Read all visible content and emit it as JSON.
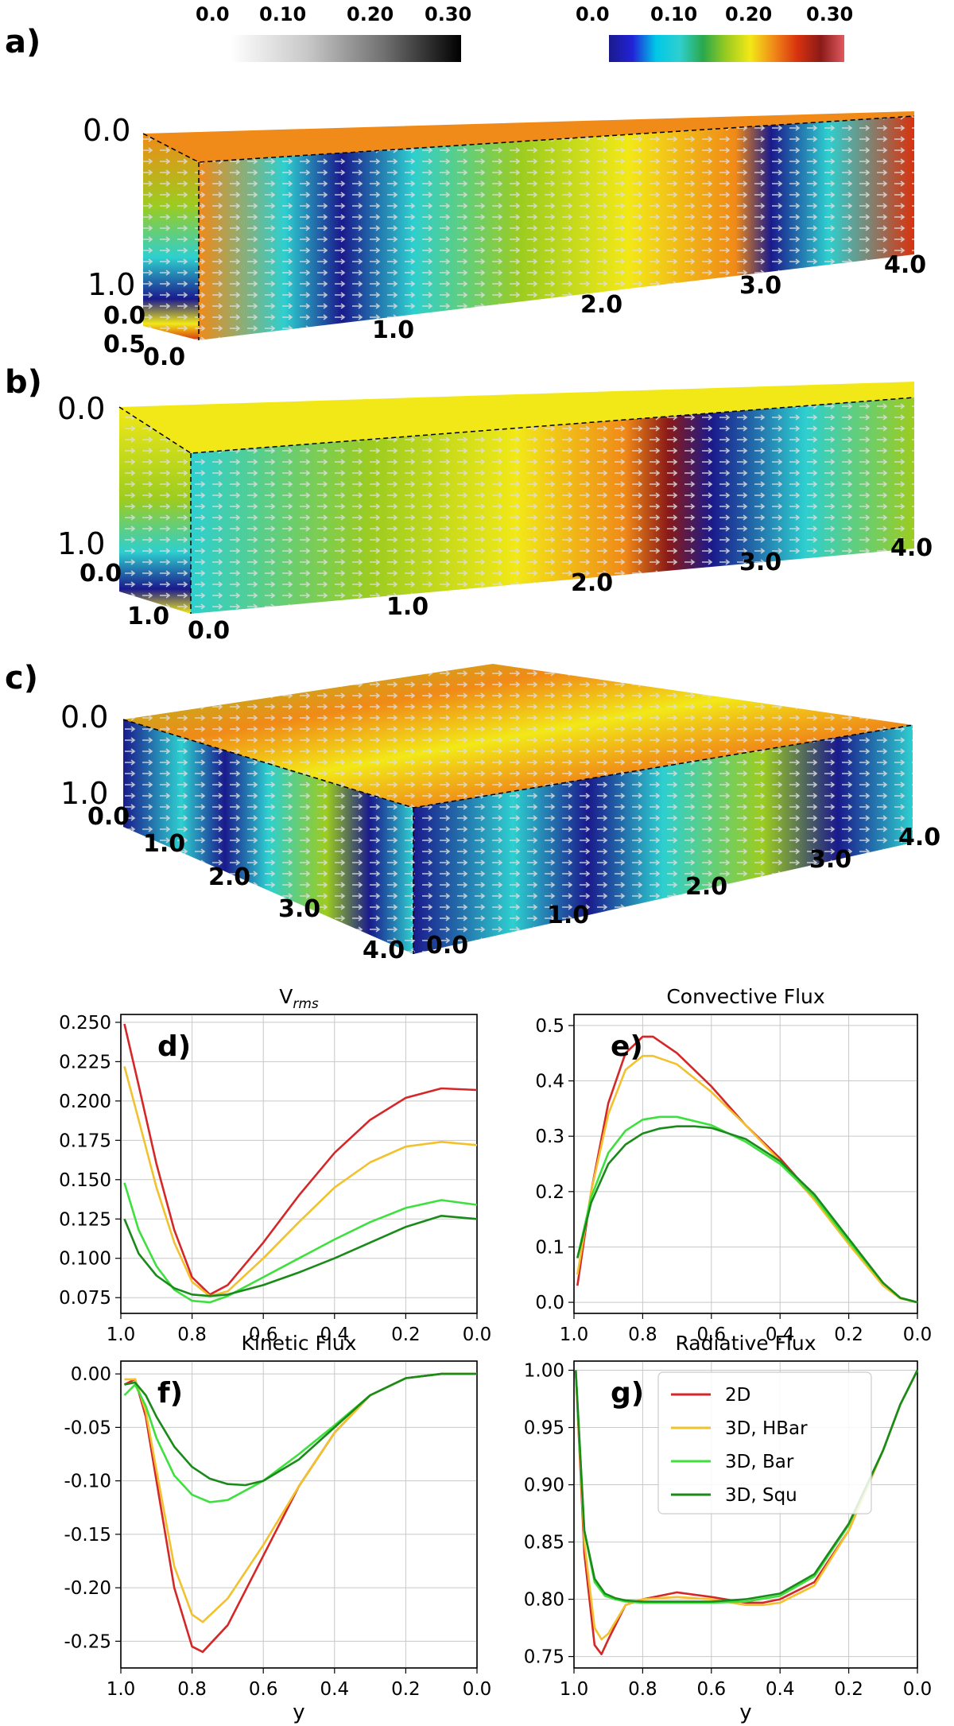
{
  "panels": {
    "a": "a)",
    "b": "b)",
    "c": "c)"
  },
  "colorbars": {
    "gray": {
      "ticks": [
        "0.0",
        "0.10",
        "0.20",
        "0.30"
      ]
    },
    "color": {
      "ticks": [
        "0.0",
        "0.10",
        "0.20",
        "0.30"
      ]
    }
  },
  "box_a": {
    "labels": [
      "0.0",
      "1.0",
      "0.0",
      "0.5",
      "0.0",
      "1.0",
      "2.0",
      "3.0",
      "4.0"
    ]
  },
  "box_b": {
    "labels": [
      "0.0",
      "1.0",
      "0.0",
      "1.0",
      "0.0",
      "1.0",
      "2.0",
      "3.0",
      "4.0"
    ]
  },
  "box_c": {
    "labels": [
      "0.0",
      "1.0",
      "0.0",
      "1.0",
      "2.0",
      "3.0",
      "4.0",
      "0.0",
      "1.0",
      "2.0",
      "3.0",
      "4.0"
    ]
  },
  "chart_data": [
    {
      "id": "d",
      "type": "line",
      "panel_label": "d)",
      "title": "V",
      "title_sub": "rms",
      "xlabel": "",
      "ylabel": "",
      "xlim": [
        1.0,
        0.0
      ],
      "ylim": [
        0.065,
        0.255
      ],
      "grid": true,
      "xticks": [
        "1.0",
        "0.8",
        "0.6",
        "0.4",
        "0.2",
        "0.0"
      ],
      "yticks": [
        "0.250",
        "0.225",
        "0.200",
        "0.175",
        "0.150",
        "0.125",
        "0.100",
        "0.075"
      ],
      "series": [
        {
          "name": "2D",
          "color": "#d62728",
          "x": [
            0.99,
            0.95,
            0.9,
            0.85,
            0.8,
            0.75,
            0.7,
            0.6,
            0.5,
            0.4,
            0.3,
            0.2,
            0.1,
            0.0
          ],
          "y": [
            0.249,
            0.21,
            0.16,
            0.118,
            0.088,
            0.077,
            0.083,
            0.11,
            0.14,
            0.167,
            0.188,
            0.202,
            0.208,
            0.207
          ]
        },
        {
          "name": "3D, HBar",
          "color": "#f2c12e",
          "x": [
            0.99,
            0.95,
            0.9,
            0.85,
            0.8,
            0.75,
            0.7,
            0.6,
            0.5,
            0.4,
            0.3,
            0.2,
            0.1,
            0.0
          ],
          "y": [
            0.222,
            0.188,
            0.145,
            0.11,
            0.085,
            0.076,
            0.079,
            0.1,
            0.123,
            0.145,
            0.161,
            0.171,
            0.174,
            0.172
          ]
        },
        {
          "name": "3D, Bar",
          "color": "#3ee03e",
          "x": [
            0.99,
            0.95,
            0.9,
            0.85,
            0.8,
            0.75,
            0.7,
            0.6,
            0.5,
            0.4,
            0.3,
            0.2,
            0.1,
            0.0
          ],
          "y": [
            0.148,
            0.118,
            0.095,
            0.08,
            0.073,
            0.072,
            0.076,
            0.088,
            0.1,
            0.112,
            0.123,
            0.132,
            0.137,
            0.134
          ]
        },
        {
          "name": "3D, Squ",
          "color": "#1a8a1a",
          "x": [
            0.99,
            0.95,
            0.9,
            0.85,
            0.8,
            0.75,
            0.7,
            0.6,
            0.5,
            0.4,
            0.3,
            0.2,
            0.1,
            0.0
          ],
          "y": [
            0.125,
            0.103,
            0.089,
            0.081,
            0.077,
            0.076,
            0.077,
            0.083,
            0.091,
            0.1,
            0.11,
            0.12,
            0.127,
            0.125
          ]
        }
      ]
    },
    {
      "id": "e",
      "type": "line",
      "panel_label": "e)",
      "title": "Convective Flux",
      "xlabel": "",
      "ylabel": "",
      "xlim": [
        1.0,
        0.0
      ],
      "ylim": [
        -0.02,
        0.52
      ],
      "grid": true,
      "xticks": [
        "1.0",
        "0.8",
        "0.6",
        "0.4",
        "0.2",
        "0.0"
      ],
      "yticks": [
        "0.5",
        "0.4",
        "0.3",
        "0.2",
        "0.1",
        "0.0"
      ],
      "series": [
        {
          "name": "2D",
          "color": "#d62728",
          "x": [
            0.99,
            0.95,
            0.9,
            0.85,
            0.8,
            0.77,
            0.7,
            0.6,
            0.5,
            0.4,
            0.3,
            0.2,
            0.1,
            0.05,
            0.0
          ],
          "y": [
            0.03,
            0.2,
            0.36,
            0.45,
            0.48,
            0.48,
            0.45,
            0.39,
            0.32,
            0.26,
            0.19,
            0.11,
            0.035,
            0.008,
            0.0
          ]
        },
        {
          "name": "3D, HBar",
          "color": "#f2c12e",
          "x": [
            0.99,
            0.95,
            0.9,
            0.85,
            0.8,
            0.77,
            0.7,
            0.6,
            0.5,
            0.4,
            0.3,
            0.2,
            0.1,
            0.05,
            0.0
          ],
          "y": [
            0.05,
            0.2,
            0.34,
            0.42,
            0.445,
            0.445,
            0.43,
            0.38,
            0.32,
            0.255,
            0.185,
            0.105,
            0.03,
            0.007,
            0.0
          ]
        },
        {
          "name": "3D, Bar",
          "color": "#3ee03e",
          "x": [
            0.99,
            0.95,
            0.9,
            0.85,
            0.8,
            0.75,
            0.7,
            0.6,
            0.5,
            0.4,
            0.3,
            0.2,
            0.1,
            0.05,
            0.0
          ],
          "y": [
            0.08,
            0.19,
            0.27,
            0.31,
            0.33,
            0.335,
            0.335,
            0.32,
            0.29,
            0.25,
            0.19,
            0.11,
            0.035,
            0.008,
            0.0
          ]
        },
        {
          "name": "3D, Squ",
          "color": "#1a8a1a",
          "x": [
            0.99,
            0.95,
            0.9,
            0.85,
            0.8,
            0.75,
            0.7,
            0.65,
            0.6,
            0.5,
            0.4,
            0.3,
            0.2,
            0.1,
            0.05,
            0.0
          ],
          "y": [
            0.08,
            0.18,
            0.25,
            0.285,
            0.305,
            0.314,
            0.318,
            0.318,
            0.315,
            0.295,
            0.255,
            0.195,
            0.115,
            0.035,
            0.008,
            0.0
          ]
        }
      ]
    },
    {
      "id": "f",
      "type": "line",
      "panel_label": "f)",
      "title": "Kinetic Flux",
      "xlabel": "y",
      "ylabel": "",
      "xlim": [
        1.0,
        0.0
      ],
      "ylim": [
        -0.275,
        0.012
      ],
      "grid": true,
      "xticks": [
        "1.0",
        "0.8",
        "0.6",
        "0.4",
        "0.2",
        "0.0"
      ],
      "yticks": [
        "0.00",
        "-0.05",
        "-0.10",
        "-0.15",
        "-0.20",
        "-0.25"
      ],
      "series": [
        {
          "name": "2D",
          "color": "#d62728",
          "x": [
            0.99,
            0.96,
            0.93,
            0.9,
            0.85,
            0.8,
            0.77,
            0.7,
            0.6,
            0.5,
            0.4,
            0.3,
            0.2,
            0.1,
            0.05,
            0.0
          ],
          "y": [
            -0.01,
            -0.005,
            -0.04,
            -0.1,
            -0.2,
            -0.255,
            -0.26,
            -0.235,
            -0.17,
            -0.105,
            -0.055,
            -0.02,
            -0.004,
            0.0,
            0.0,
            0.0
          ]
        },
        {
          "name": "3D, HBar",
          "color": "#f2c12e",
          "x": [
            0.99,
            0.96,
            0.93,
            0.9,
            0.85,
            0.8,
            0.77,
            0.7,
            0.6,
            0.5,
            0.4,
            0.3,
            0.2,
            0.1,
            0.05,
            0.0
          ],
          "y": [
            -0.005,
            -0.005,
            -0.035,
            -0.09,
            -0.18,
            -0.225,
            -0.232,
            -0.21,
            -0.16,
            -0.105,
            -0.055,
            -0.02,
            -0.004,
            0.0,
            0.0,
            0.0
          ]
        },
        {
          "name": "3D, Bar",
          "color": "#3ee03e",
          "x": [
            0.99,
            0.96,
            0.93,
            0.9,
            0.85,
            0.8,
            0.75,
            0.7,
            0.6,
            0.5,
            0.4,
            0.3,
            0.2,
            0.1,
            0.05,
            0.0
          ],
          "y": [
            -0.02,
            -0.01,
            -0.03,
            -0.06,
            -0.095,
            -0.113,
            -0.12,
            -0.118,
            -0.1,
            -0.075,
            -0.048,
            -0.02,
            -0.004,
            0.0,
            0.0,
            0.0
          ]
        },
        {
          "name": "3D, Squ",
          "color": "#1a8a1a",
          "x": [
            0.99,
            0.96,
            0.93,
            0.9,
            0.85,
            0.8,
            0.75,
            0.7,
            0.65,
            0.6,
            0.5,
            0.4,
            0.3,
            0.2,
            0.1,
            0.05,
            0.0
          ],
          "y": [
            -0.01,
            -0.008,
            -0.02,
            -0.04,
            -0.068,
            -0.087,
            -0.098,
            -0.103,
            -0.104,
            -0.1,
            -0.08,
            -0.05,
            -0.02,
            -0.004,
            0.0,
            0.0,
            0.0
          ]
        }
      ]
    },
    {
      "id": "g",
      "type": "line",
      "panel_label": "g)",
      "title": "Radiative Flux",
      "xlabel": "y",
      "ylabel": "",
      "xlim": [
        1.0,
        0.0
      ],
      "ylim": [
        0.74,
        1.008
      ],
      "grid": true,
      "xticks": [
        "1.0",
        "0.8",
        "0.6",
        "0.4",
        "0.2",
        "0.0"
      ],
      "yticks": [
        "1.00",
        "0.95",
        "0.90",
        "0.85",
        "0.80",
        "0.75"
      ],
      "legend": [
        "2D",
        "3D, HBar",
        "3D, Bar",
        "3D, Squ"
      ],
      "series": [
        {
          "name": "2D",
          "color": "#d62728",
          "x": [
            0.995,
            0.97,
            0.94,
            0.92,
            0.9,
            0.85,
            0.8,
            0.7,
            0.6,
            0.5,
            0.45,
            0.4,
            0.3,
            0.2,
            0.1,
            0.05,
            0.0
          ],
          "y": [
            1.0,
            0.84,
            0.76,
            0.752,
            0.765,
            0.795,
            0.8,
            0.806,
            0.802,
            0.797,
            0.797,
            0.8,
            0.815,
            0.86,
            0.93,
            0.97,
            1.0
          ]
        },
        {
          "name": "3D, HBar",
          "color": "#f2c12e",
          "x": [
            0.995,
            0.97,
            0.94,
            0.92,
            0.9,
            0.85,
            0.8,
            0.7,
            0.6,
            0.5,
            0.45,
            0.4,
            0.3,
            0.2,
            0.1,
            0.05,
            0.0
          ],
          "y": [
            1.0,
            0.85,
            0.775,
            0.765,
            0.77,
            0.795,
            0.8,
            0.802,
            0.8,
            0.795,
            0.795,
            0.797,
            0.812,
            0.86,
            0.93,
            0.97,
            1.0
          ]
        },
        {
          "name": "3D, Bar",
          "color": "#3ee03e",
          "x": [
            0.995,
            0.97,
            0.94,
            0.91,
            0.88,
            0.85,
            0.8,
            0.7,
            0.6,
            0.5,
            0.4,
            0.3,
            0.2,
            0.1,
            0.05,
            0.0
          ],
          "y": [
            1.0,
            0.86,
            0.815,
            0.803,
            0.8,
            0.798,
            0.797,
            0.797,
            0.797,
            0.798,
            0.803,
            0.82,
            0.865,
            0.93,
            0.97,
            1.0
          ]
        },
        {
          "name": "3D, Squ",
          "color": "#1a8a1a",
          "x": [
            0.995,
            0.97,
            0.94,
            0.91,
            0.88,
            0.85,
            0.8,
            0.7,
            0.6,
            0.5,
            0.4,
            0.3,
            0.2,
            0.1,
            0.05,
            0.0
          ],
          "y": [
            1.0,
            0.86,
            0.818,
            0.805,
            0.801,
            0.799,
            0.798,
            0.798,
            0.798,
            0.8,
            0.805,
            0.822,
            0.866,
            0.93,
            0.97,
            1.0
          ]
        }
      ]
    }
  ]
}
